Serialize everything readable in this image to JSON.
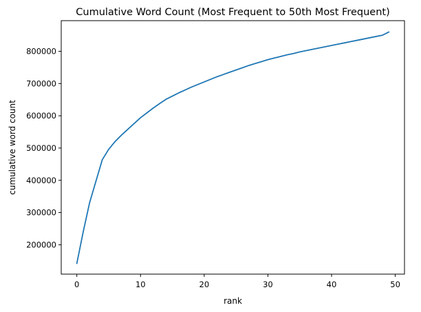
{
  "chart_data": {
    "type": "line",
    "title": "Cumulative Word Count (Most Frequent to 50th Most Frequent)",
    "xlabel": "rank",
    "ylabel": "cumulative word count",
    "xlim": [
      -2.45,
      51.45
    ],
    "ylim": [
      109000,
      895000
    ],
    "xticks": [
      0,
      10,
      20,
      30,
      40,
      50
    ],
    "yticks": [
      200000,
      300000,
      400000,
      500000,
      600000,
      700000,
      800000
    ],
    "grid": false,
    "series": [
      {
        "color": "#1f77b4",
        "x": [
          0,
          1,
          2,
          3,
          4,
          5,
          6,
          7,
          8,
          9,
          10,
          11,
          12,
          13,
          14,
          15,
          16,
          17,
          18,
          19,
          20,
          21,
          22,
          23,
          24,
          25,
          26,
          27,
          28,
          29,
          30,
          31,
          32,
          33,
          34,
          35,
          36,
          37,
          38,
          39,
          40,
          41,
          42,
          43,
          44,
          45,
          46,
          47,
          48,
          49
        ],
        "y": [
          142000,
          240000,
          330000,
          397000,
          464000,
          496000,
          520000,
          540000,
          558000,
          576000,
          594000,
          609000,
          624000,
          638000,
          651000,
          661000,
          671000,
          680000,
          689000,
          697000,
          705000,
          713000,
          721000,
          728000,
          735000,
          742000,
          749000,
          756000,
          762000,
          768000,
          774000,
          779000,
          784000,
          789000,
          793000,
          798000,
          802000,
          806000,
          810000,
          814000,
          818000,
          822000,
          826000,
          830000,
          834000,
          838000,
          842000,
          846000,
          850000,
          860000
        ]
      }
    ]
  }
}
